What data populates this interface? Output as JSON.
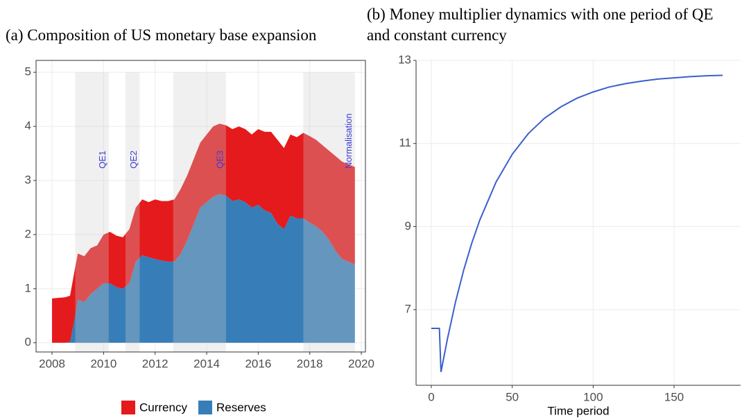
{
  "chart_data": [
    {
      "type": "area",
      "stacked": true,
      "title": "(a) Composition of US monetary base expansion",
      "x": [
        2008.0,
        2008.5,
        2008.7,
        2008.9,
        2009.0,
        2009.25,
        2009.5,
        2009.75,
        2010.0,
        2010.25,
        2010.5,
        2010.75,
        2011.0,
        2011.25,
        2011.5,
        2011.75,
        2012.0,
        2012.25,
        2012.5,
        2012.75,
        2013.0,
        2013.25,
        2013.5,
        2013.75,
        2014.0,
        2014.25,
        2014.5,
        2014.75,
        2015.0,
        2015.25,
        2015.5,
        2015.75,
        2016.0,
        2016.25,
        2016.5,
        2016.75,
        2017.0,
        2017.25,
        2017.5,
        2017.75,
        2018.0,
        2018.25,
        2018.5,
        2018.75,
        2019.0,
        2019.25,
        2019.5,
        2019.75
      ],
      "series": [
        {
          "name": "Currency",
          "color": "#e41a1c",
          "values": [
            0.82,
            0.84,
            0.85,
            0.9,
            0.85,
            0.85,
            0.85,
            0.8,
            0.9,
            0.95,
            0.95,
            0.95,
            1.0,
            1.0,
            1.03,
            1.02,
            1.1,
            1.1,
            1.12,
            1.15,
            1.2,
            1.2,
            1.2,
            1.2,
            1.25,
            1.3,
            1.3,
            1.3,
            1.33,
            1.35,
            1.35,
            1.35,
            1.4,
            1.45,
            1.5,
            1.55,
            1.5,
            1.5,
            1.5,
            1.58,
            1.6,
            1.6,
            1.6,
            1.65,
            1.75,
            1.8,
            1.8,
            1.8
          ]
        },
        {
          "name": "Reserves",
          "color": "#377eb8",
          "values": [
            0,
            0,
            0.02,
            0.5,
            0.8,
            0.75,
            0.9,
            1.0,
            1.1,
            1.1,
            1.03,
            1.0,
            1.1,
            1.5,
            1.62,
            1.58,
            1.55,
            1.52,
            1.5,
            1.5,
            1.65,
            1.9,
            2.2,
            2.5,
            2.6,
            2.7,
            2.75,
            2.72,
            2.62,
            2.65,
            2.6,
            2.5,
            2.55,
            2.45,
            2.4,
            2.2,
            2.1,
            2.35,
            2.3,
            2.3,
            2.22,
            2.15,
            2.05,
            1.9,
            1.7,
            1.55,
            1.5,
            1.45
          ]
        }
      ],
      "periods": [
        {
          "label": "QE1",
          "start": 2008.9,
          "end": 2010.2
        },
        {
          "label": "QE2",
          "start": 2010.85,
          "end": 2011.4
        },
        {
          "label": "QE3",
          "start": 2012.7,
          "end": 2014.75
        },
        {
          "label": "Normalisation",
          "start": 2017.75,
          "end": 2019.75
        }
      ],
      "xlim": [
        2007.38,
        2020.16
      ],
      "xticks": [
        2008,
        2010,
        2012,
        2014,
        2016,
        2018,
        2020
      ],
      "ylim": [
        -0.17,
        5.22
      ],
      "yticks": [
        0,
        1,
        2,
        3,
        4,
        5
      ],
      "grid": true,
      "legend": "bottom"
    },
    {
      "type": "line",
      "title": "(b) Money multiplier dynamics with one period of QE and constant currency",
      "x_label": "Time period",
      "x": [
        0,
        5,
        6,
        10,
        15,
        20,
        25,
        30,
        40,
        50,
        60,
        70,
        80,
        90,
        100,
        110,
        120,
        130,
        140,
        150,
        160,
        170,
        180
      ],
      "series": [
        {
          "color": "#3a5fcd",
          "values": [
            6.55,
            6.55,
            5.5,
            6.3,
            7.19,
            7.95,
            8.6,
            9.16,
            10.07,
            10.74,
            11.24,
            11.61,
            11.88,
            12.09,
            12.24,
            12.36,
            12.44,
            12.5,
            12.55,
            12.58,
            12.61,
            12.63,
            12.64
          ]
        }
      ],
      "xlim": [
        -9.4,
        191.1
      ],
      "xticks": [
        0,
        50,
        100,
        150
      ],
      "ylim": [
        5.18,
        13
      ],
      "yticks": [
        7,
        9,
        11,
        13
      ],
      "grid": true
    }
  ]
}
